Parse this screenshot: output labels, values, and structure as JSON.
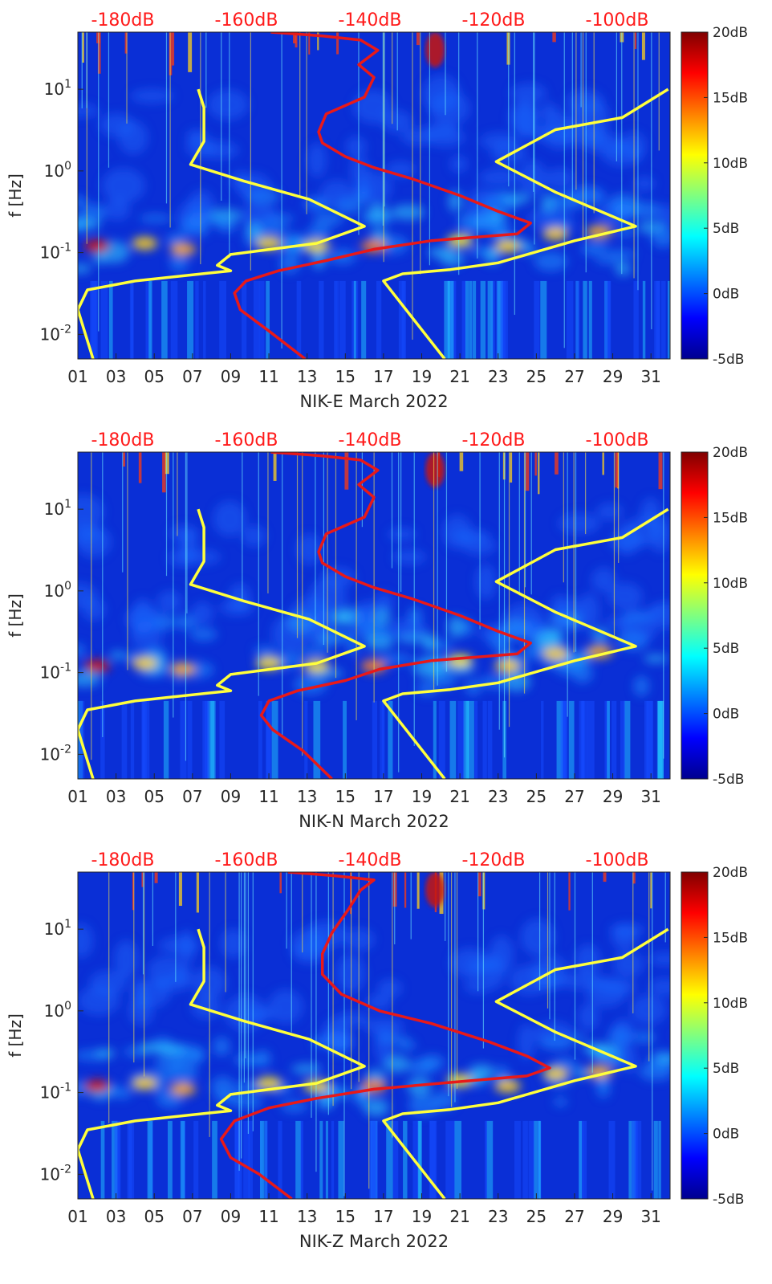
{
  "colorbar": {
    "labels": [
      "20dB",
      "15dB",
      "10dB",
      "5dB",
      "0dB",
      "-5dB"
    ],
    "values": [
      20,
      15,
      10,
      5,
      0,
      -5
    ],
    "range": [
      -5,
      20
    ],
    "colormap": "jet"
  },
  "db_scale": {
    "labels": [
      "-180dB",
      "-160dB",
      "-140dB",
      "-120dB",
      "-100dB"
    ],
    "values": [
      -180,
      -160,
      -140,
      -120,
      -100
    ],
    "color": "#ff1a1a"
  },
  "y_ticks": [
    "10^{-2}",
    "10^{-1}",
    "10^{0}",
    "10^{1}"
  ],
  "y_tick_values": [
    0.01,
    0.1,
    1,
    10
  ],
  "x_ticks": [
    "01",
    "03",
    "05",
    "07",
    "09",
    "11",
    "13",
    "15",
    "17",
    "19",
    "21",
    "23",
    "25",
    "27",
    "29",
    "31"
  ],
  "x_tick_values": [
    1,
    3,
    5,
    7,
    9,
    11,
    13,
    15,
    17,
    19,
    21,
    23,
    25,
    27,
    29,
    31
  ],
  "chart_data": [
    {
      "type": "heatmap",
      "title": "",
      "xlabel": "NIK-E March 2022",
      "ylabel": "f [Hz]",
      "xlim": [
        1,
        32
      ],
      "ylim": [
        0.005,
        50
      ],
      "yscale": "log",
      "series": [
        {
          "name": "yellow-left",
          "color": "#ffff3c",
          "x": [
            7.3,
            7.6,
            7.6,
            6.9,
            9.7,
            13.1,
            16.0,
            13.5,
            9.0,
            8.3,
            9.0,
            4.0,
            1.5,
            1.0,
            1.8
          ],
          "y": [
            10,
            6,
            2.3,
            1.2,
            0.75,
            0.45,
            0.21,
            0.13,
            0.095,
            0.07,
            0.06,
            0.045,
            0.035,
            0.02,
            0.005
          ]
        },
        {
          "name": "yellow-right",
          "color": "#ffff3c",
          "x": [
            31.9,
            29.5,
            26.0,
            22.9,
            26.0,
            30.2,
            27.0,
            23.0,
            20.5,
            18.0,
            17.0,
            20.2
          ],
          "y": [
            10,
            4.5,
            3.2,
            1.3,
            0.55,
            0.21,
            0.14,
            0.075,
            0.062,
            0.055,
            0.045,
            0.005
          ]
        },
        {
          "name": "red",
          "color": "#e81919",
          "x": [
            11.1,
            13.8,
            15.8,
            16.7,
            15.7,
            16.5,
            16.0,
            14.0,
            13.6,
            13.8,
            15.0,
            16.5,
            18.5,
            21.0,
            23.0,
            24.7,
            24.0,
            19.5,
            16.5,
            14.0,
            11.5,
            9.8,
            9.2,
            9.5,
            11.0,
            12.9
          ],
          "y": [
            50,
            45,
            40,
            30,
            20,
            14,
            8,
            5,
            3,
            2.2,
            1.5,
            1.1,
            0.8,
            0.5,
            0.32,
            0.23,
            0.17,
            0.14,
            0.11,
            0.08,
            0.06,
            0.045,
            0.032,
            0.02,
            0.011,
            0.005
          ]
        }
      ]
    },
    {
      "type": "heatmap",
      "title": "",
      "xlabel": "NIK-N March 2022",
      "ylabel": "f [Hz]",
      "xlim": [
        1,
        32
      ],
      "ylim": [
        0.005,
        50
      ],
      "yscale": "log",
      "series": [
        {
          "name": "yellow-left",
          "color": "#ffff3c",
          "x": [
            7.3,
            7.6,
            7.6,
            6.9,
            9.7,
            13.1,
            16.0,
            13.5,
            9.0,
            8.3,
            9.0,
            4.0,
            1.5,
            1.0,
            1.8
          ],
          "y": [
            10,
            6,
            2.3,
            1.2,
            0.75,
            0.45,
            0.21,
            0.13,
            0.095,
            0.07,
            0.06,
            0.045,
            0.035,
            0.02,
            0.005
          ]
        },
        {
          "name": "yellow-right",
          "color": "#ffff3c",
          "x": [
            31.9,
            29.5,
            26.0,
            22.9,
            26.0,
            30.2,
            27.0,
            23.0,
            20.5,
            18.0,
            17.0,
            20.2
          ],
          "y": [
            10,
            4.5,
            3.2,
            1.3,
            0.55,
            0.21,
            0.14,
            0.075,
            0.062,
            0.055,
            0.045,
            0.005
          ]
        },
        {
          "name": "red",
          "color": "#e81919",
          "x": [
            11.1,
            13.8,
            15.8,
            16.7,
            15.7,
            16.5,
            16.0,
            14.0,
            13.6,
            13.8,
            15.0,
            16.5,
            18.5,
            21.0,
            23.0,
            24.7,
            24.0,
            19.5,
            16.8,
            15.0,
            12.5,
            11.0,
            10.6,
            11.2,
            12.8,
            14.3
          ],
          "y": [
            50,
            45,
            40,
            30,
            20,
            14,
            8,
            5,
            3,
            2.2,
            1.5,
            1.1,
            0.8,
            0.5,
            0.32,
            0.23,
            0.17,
            0.14,
            0.11,
            0.08,
            0.06,
            0.045,
            0.03,
            0.02,
            0.011,
            0.005
          ]
        }
      ]
    },
    {
      "type": "heatmap",
      "title": "",
      "xlabel": "NIK-Z March 2022",
      "ylabel": "f [Hz]",
      "xlim": [
        1,
        32
      ],
      "ylim": [
        0.005,
        50
      ],
      "yscale": "log",
      "series": [
        {
          "name": "yellow-left",
          "color": "#ffff3c",
          "x": [
            7.3,
            7.6,
            7.6,
            6.9,
            9.7,
            13.1,
            16.0,
            13.5,
            9.0,
            8.3,
            9.0,
            4.0,
            1.5,
            1.0,
            1.8
          ],
          "y": [
            10,
            6,
            2.3,
            1.2,
            0.75,
            0.45,
            0.21,
            0.13,
            0.095,
            0.07,
            0.06,
            0.045,
            0.035,
            0.02,
            0.005
          ]
        },
        {
          "name": "yellow-right",
          "color": "#ffff3c",
          "x": [
            31.9,
            29.5,
            26.0,
            22.9,
            26.0,
            30.2,
            27.0,
            23.0,
            20.5,
            18.0,
            17.0,
            20.2
          ],
          "y": [
            10,
            4.5,
            3.2,
            1.3,
            0.55,
            0.21,
            0.14,
            0.075,
            0.062,
            0.055,
            0.045,
            0.005
          ]
        },
        {
          "name": "red",
          "color": "#e81919",
          "x": [
            12.0,
            14.5,
            16.5,
            15.8,
            15.2,
            14.3,
            13.8,
            13.8,
            14.8,
            16.8,
            19.5,
            22.5,
            24.5,
            25.7,
            24.5,
            20.0,
            16.5,
            13.5,
            11.0,
            9.2,
            8.5,
            9.0,
            10.5,
            12.2
          ],
          "y": [
            50,
            45,
            40,
            30,
            18,
            9,
            5,
            2.8,
            1.6,
            1.0,
            0.7,
            0.42,
            0.28,
            0.2,
            0.16,
            0.13,
            0.11,
            0.085,
            0.065,
            0.045,
            0.027,
            0.016,
            0.01,
            0.005
          ]
        }
      ]
    }
  ]
}
